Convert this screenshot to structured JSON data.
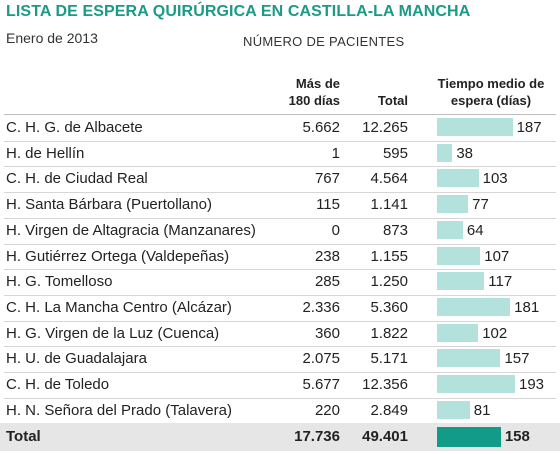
{
  "title": "LISTA DE ESPERA QUIRÚRGICA EN CASTILLA-LA MANCHA",
  "subtitle": "Enero de 2013",
  "group_title": "NÚMERO DE PACIENTES",
  "columns": {
    "mas_180_line1": "Más de",
    "mas_180_line2": "180 días",
    "total": "Total",
    "tiempo_line1": "Tiempo medio de",
    "tiempo_line2": "espera (días)"
  },
  "colors": {
    "title": "#1a9a87",
    "bar": "#b3e1db",
    "total_bar": "#139b8a"
  },
  "chart_data": {
    "type": "table",
    "title": "LISTA DE ESPERA QUIRÚRGICA EN CASTILLA-LA MANCHA",
    "subtitle": "Enero de 2013",
    "columns": [
      "",
      "Más de 180 días",
      "Total",
      "Tiempo medio de espera (días)"
    ],
    "rows": [
      {
        "name": "C. H. G. de Albacete",
        "mas180": "5.662",
        "total": "12.265",
        "tiempo": 187
      },
      {
        "name": "H. de Hellín",
        "mas180": "1",
        "total": "595",
        "tiempo": 38
      },
      {
        "name": "C. H. de Ciudad Real",
        "mas180": "767",
        "total": "4.564",
        "tiempo": 103
      },
      {
        "name": "H. Santa Bárbara (Puertollano)",
        "mas180": "115",
        "total": "1.141",
        "tiempo": 77
      },
      {
        "name": "H. Virgen de Altagracia (Manzanares)",
        "mas180": "0",
        "total": "873",
        "tiempo": 64
      },
      {
        "name": "H. Gutiérrez Ortega (Valdepeñas)",
        "mas180": "238",
        "total": "1.155",
        "tiempo": 107
      },
      {
        "name": "H. G. Tomelloso",
        "mas180": "285",
        "total": "1.250",
        "tiempo": 117
      },
      {
        "name": "C. H. La Mancha Centro (Alcázar)",
        "mas180": "2.336",
        "total": "5.360",
        "tiempo": 181
      },
      {
        "name": "H. G. Virgen de la Luz (Cuenca)",
        "mas180": "360",
        "total": "1.822",
        "tiempo": 102
      },
      {
        "name": "H. U. de Guadalajara",
        "mas180": "2.075",
        "total": "5.171",
        "tiempo": 157
      },
      {
        "name": "C. H. de Toledo",
        "mas180": "5.677",
        "total": "12.356",
        "tiempo": 193
      },
      {
        "name": "H. N. Señora del Prado (Talavera)",
        "mas180": "220",
        "total": "2.849",
        "tiempo": 81
      }
    ],
    "total": {
      "name": "Total",
      "mas180": "17.736",
      "total": "49.401",
      "tiempo": 158
    }
  }
}
